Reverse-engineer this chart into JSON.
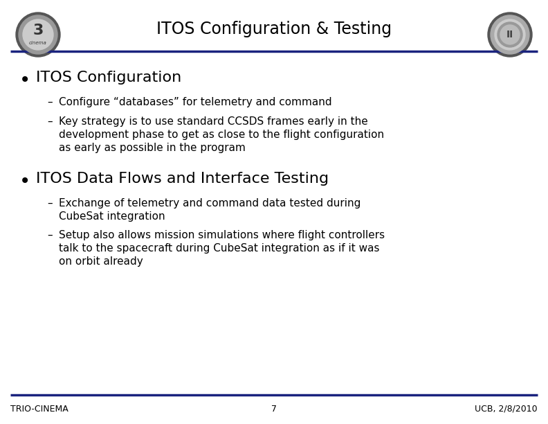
{
  "title": "ITOS Configuration & Testing",
  "bg_color": "#ffffff",
  "header_line_color": "#1a237e",
  "footer_line_color": "#1a237e",
  "title_fontsize": 17,
  "title_color": "#000000",
  "bullet1_header": "ITOS Configuration",
  "bullet1_subs": [
    "Configure “databases” for telemetry and command",
    "Key strategy is to use standard CCSDS frames early in the\ndevelopment phase to get as close to the flight configuration\nas early as possible in the program"
  ],
  "bullet2_header": "ITOS Data Flows and Interface Testing",
  "bullet2_subs": [
    "Exchange of telemetry and command data tested during\nCubeSat integration",
    "Setup also allows mission simulations where flight controllers\ntalk to the spacecraft during CubeSat integration as if it was\non orbit already"
  ],
  "footer_left": "TRIO-CINEMA",
  "footer_center": "7",
  "footer_right": "UCB, 2/8/2010",
  "header_fontsize": 16,
  "sub_fontsize": 11,
  "footer_fontsize": 9
}
